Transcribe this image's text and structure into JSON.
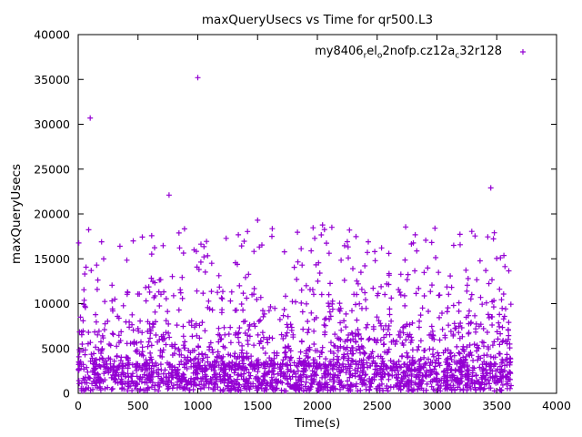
{
  "chart_data": {
    "type": "scatter",
    "title": "maxQueryUsecs vs Time for qr500.L3",
    "xlabel": "Time(s)",
    "ylabel": "maxQueryUsecs",
    "xlim": [
      0,
      4000
    ],
    "ylim": [
      0,
      40000
    ],
    "xticks": [
      0,
      500,
      1000,
      1500,
      2000,
      2500,
      3000,
      3500,
      4000
    ],
    "yticks": [
      0,
      5000,
      10000,
      15000,
      20000,
      25000,
      30000,
      35000,
      40000
    ],
    "grid": false,
    "legend_position": "top-right-inside",
    "legend_segments": [
      {
        "text": "my8406"
      },
      {
        "text": "r",
        "sub": true
      },
      {
        "text": "el"
      },
      {
        "text": "o",
        "sub": true
      },
      {
        "text": "2nofp.cz12a"
      },
      {
        "text": "c",
        "sub": true
      },
      {
        "text": "32r128"
      }
    ],
    "marker": "plus",
    "marker_color": "#9400D3",
    "outliers": [
      [
        100,
        30700
      ],
      [
        1000,
        35200
      ],
      [
        760,
        22100
      ],
      [
        3450,
        22900
      ],
      [
        1500,
        19300
      ],
      [
        3480,
        17900
      ],
      [
        1620,
        17500
      ],
      [
        460,
        17000
      ],
      [
        2250,
        16900
      ],
      [
        3140,
        16500
      ],
      [
        55,
        13300
      ],
      [
        2480,
        15800
      ]
    ],
    "cloud": {
      "seed": 1337,
      "count": 2300,
      "x_min": 0,
      "x_max": 3620,
      "bands": [
        {
          "p": 0.55,
          "y_min": 250,
          "y_max": 3200,
          "pow": 1.0
        },
        {
          "p": 0.25,
          "y_min": 3200,
          "y_max": 6500,
          "pow": 1.8
        },
        {
          "p": 0.13,
          "y_min": 6500,
          "y_max": 11000,
          "pow": 1.8
        },
        {
          "p": 0.05,
          "y_min": 11000,
          "y_max": 15500,
          "pow": 1.6
        },
        {
          "p": 0.02,
          "y_min": 15500,
          "y_max": 18800,
          "pow": 1.2
        }
      ]
    }
  }
}
